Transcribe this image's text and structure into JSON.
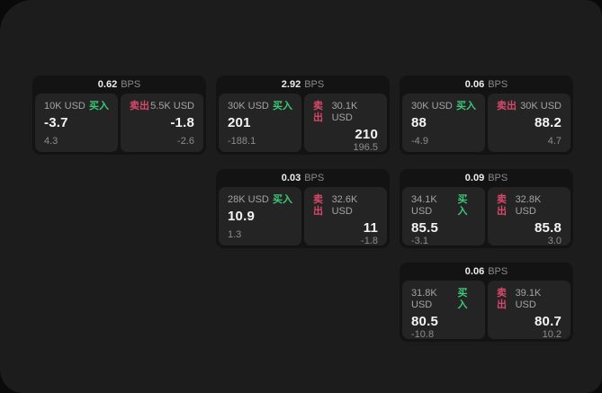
{
  "app": {
    "unit_label": "BPS",
    "buy_label": "买入",
    "sell_label": "卖出",
    "colors": {
      "buy": "#3dc878",
      "sell": "#d9486a",
      "background": "#0a0a0a",
      "panel": "#1c1c1c",
      "card": "#131313",
      "cell": "#242424"
    }
  },
  "cards": [
    {
      "bps": "0.62",
      "buy": {
        "amount": "10K USD",
        "price": "-3.7",
        "change": "4.3"
      },
      "sell": {
        "amount": "5.5K USD",
        "price": "-1.8",
        "change": "-2.6"
      }
    },
    {
      "bps": "2.92",
      "buy": {
        "amount": "30K USD",
        "price": "201",
        "change": "-188.1"
      },
      "sell": {
        "amount": "30.1K USD",
        "price": "210",
        "change": "196.5"
      }
    },
    {
      "bps": "0.06",
      "buy": {
        "amount": "30K USD",
        "price": "88",
        "change": "-4.9"
      },
      "sell": {
        "amount": "30K USD",
        "price": "88.2",
        "change": "4.7"
      }
    },
    {
      "bps": "0.03",
      "buy": {
        "amount": "28K USD",
        "price": "10.9",
        "change": "1.3"
      },
      "sell": {
        "amount": "32.6K USD",
        "price": "11",
        "change": "-1.8"
      }
    },
    {
      "bps": "0.09",
      "buy": {
        "amount": "34.1K USD",
        "price": "85.5",
        "change": "-3.1"
      },
      "sell": {
        "amount": "32.8K USD",
        "price": "85.8",
        "change": "3.0"
      }
    },
    {
      "bps": "0.06",
      "buy": {
        "amount": "31.8K USD",
        "price": "80.5",
        "change": "-10.8"
      },
      "sell": {
        "amount": "39.1K USD",
        "price": "80.7",
        "change": "10.2"
      }
    }
  ]
}
